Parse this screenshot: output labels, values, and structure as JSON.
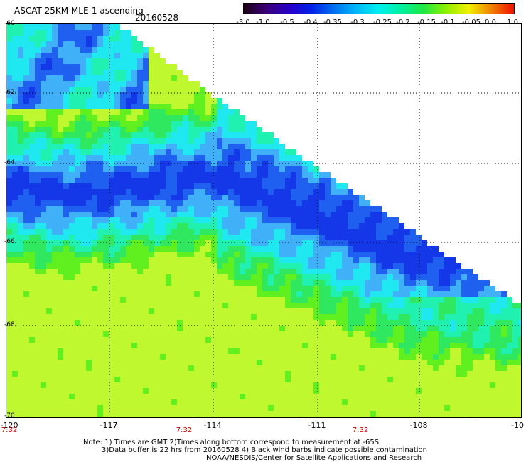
{
  "header": {
    "title": "ASCAT 25KM MLE-1 ascending",
    "date": "20160528"
  },
  "colorbar": {
    "ticks": [
      "-3.0",
      "-1.0",
      "-0.5",
      "-0.4",
      "-0.35",
      "-0.3",
      "-0.25",
      "-0.2",
      "-0.15",
      "-0.1",
      "-0.05",
      "0.0",
      "1.0"
    ],
    "colors": [
      "#1a0010",
      "#3a0078",
      "#2800c8",
      "#0020e8",
      "#0070f0",
      "#00b8f8",
      "#00f0f0",
      "#00f0a0",
      "#20e840",
      "#90f000",
      "#f0f000",
      "#f08000",
      "#f01000"
    ]
  },
  "map": {
    "lat_labels": [
      "-60",
      "-62",
      "-64",
      "-66",
      "-68",
      "-70"
    ],
    "lon_labels": [
      "-120",
      "-117",
      "-114",
      "-111",
      "-108",
      "-10"
    ],
    "time_labels": [
      "7:32",
      "7:32",
      "7:32"
    ],
    "palette": {
      "deep_blue": "#1438e8",
      "blue": "#2060f0",
      "light_blue": "#40b0f8",
      "cyan": "#20e8f0",
      "aqua_green": "#20f0b0",
      "green": "#30e860",
      "bright_green": "#60f020",
      "yellow_green": "#c0f830"
    }
  },
  "notes": {
    "line1": "Note: 1) Times are GMT 2)Times along bottom correspond to measurement at -65S",
    "line2": "3)Data buffer is 22 hrs from 20160528 4) Black wind barbs indicate possible contamination",
    "line3": "NOAA/NESDIS/Center for Satellite Applications and Research"
  }
}
